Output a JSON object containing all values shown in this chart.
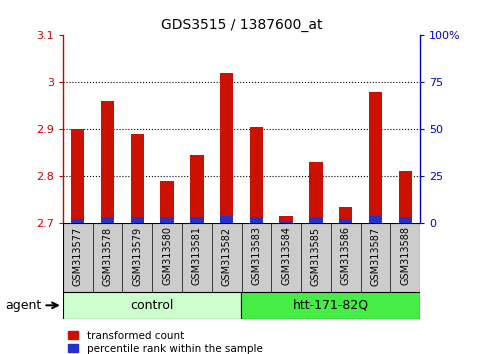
{
  "title": "GDS3515 / 1387600_at",
  "samples": [
    "GSM313577",
    "GSM313578",
    "GSM313579",
    "GSM313580",
    "GSM313581",
    "GSM313582",
    "GSM313583",
    "GSM313584",
    "GSM313585",
    "GSM313586",
    "GSM313587",
    "GSM313588"
  ],
  "transformed_count": [
    2.9,
    2.96,
    2.89,
    2.79,
    2.845,
    3.02,
    2.905,
    2.715,
    2.83,
    2.735,
    2.98,
    2.81
  ],
  "percentile_rank_pct": [
    2.0,
    3.0,
    3.0,
    3.0,
    3.0,
    3.5,
    3.0,
    0.5,
    3.0,
    2.0,
    3.5,
    3.0
  ],
  "baseline": 2.7,
  "ylim_left": [
    2.7,
    3.1
  ],
  "ylim_right": [
    0,
    100
  ],
  "yticks_left": [
    2.7,
    2.8,
    2.9,
    3.0,
    3.1
  ],
  "ytick_labels_left": [
    "2.7",
    "2.8",
    "2.9",
    "3",
    "3.1"
  ],
  "yticks_right": [
    0,
    25,
    50,
    75,
    100
  ],
  "ytick_labels_right": [
    "0",
    "25",
    "50",
    "75",
    "100%"
  ],
  "gridlines": [
    2.8,
    2.9,
    3.0
  ],
  "bar_color_red": "#cc1100",
  "bar_color_blue": "#2233cc",
  "bar_width": 0.45,
  "group_labels": [
    "control",
    "htt-171-82Q"
  ],
  "group_color_light": "#ccffcc",
  "group_color_dark": "#44ee44",
  "agent_label": "agent",
  "legend_items": [
    "transformed count",
    "percentile rank within the sample"
  ],
  "background_color": "#ffffff",
  "plot_bg_color": "#ffffff",
  "left_axis_color": "#cc0000",
  "right_axis_color": "#0000cc",
  "title_fontsize": 10,
  "tick_label_bg": "#cccccc"
}
